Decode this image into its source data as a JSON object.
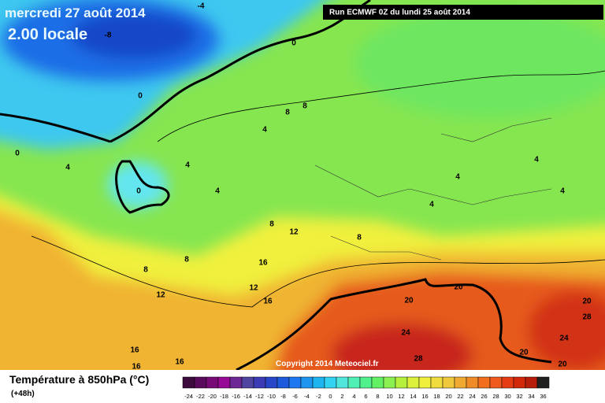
{
  "header": {
    "title": "mercredi 27 août 2014",
    "time": "2.00 locale",
    "run": "Run ECMWF 0Z du lundi 25 août 2014"
  },
  "map": {
    "copyright": "Copyright 2014 Meteociel.fr",
    "contour_labels": [
      -4,
      -8,
      0,
      0,
      0,
      4,
      0,
      4,
      4,
      4,
      8,
      8,
      8,
      12,
      8,
      8,
      8,
      16,
      12,
      12,
      16,
      4,
      4,
      4,
      4,
      20,
      20,
      20,
      28,
      24,
      24,
      28,
      20,
      20,
      16,
      16,
      16
    ]
  },
  "legend": {
    "title": "Température à 850hPa (°C)",
    "subtitle": "(+48h)",
    "labels": [
      -24,
      -22,
      -20,
      -18,
      -16,
      -14,
      -12,
      -10,
      -8,
      -6,
      -4,
      -2,
      0,
      2,
      4,
      6,
      8,
      10,
      12,
      14,
      16,
      18,
      20,
      22,
      24,
      26,
      28,
      30,
      32,
      34,
      36
    ],
    "colors": [
      "#3c0a3c",
      "#5a0a5a",
      "#780a78",
      "#960a96",
      "#6e2896",
      "#5046a0",
      "#3c3cb4",
      "#2846c8",
      "#1e5adc",
      "#1e78f0",
      "#1e96f0",
      "#1eb4f0",
      "#32d2f0",
      "#50e6dc",
      "#50f0b4",
      "#50f08c",
      "#64f064",
      "#8cf050",
      "#b4f03c",
      "#dcf03c",
      "#f0f03c",
      "#f0dc3c",
      "#f0c83c",
      "#f0aa32",
      "#f08c28",
      "#f06e1e",
      "#f05a1e",
      "#e63c14",
      "#d2280a",
      "#b41e0a",
      "#202020"
    ]
  }
}
